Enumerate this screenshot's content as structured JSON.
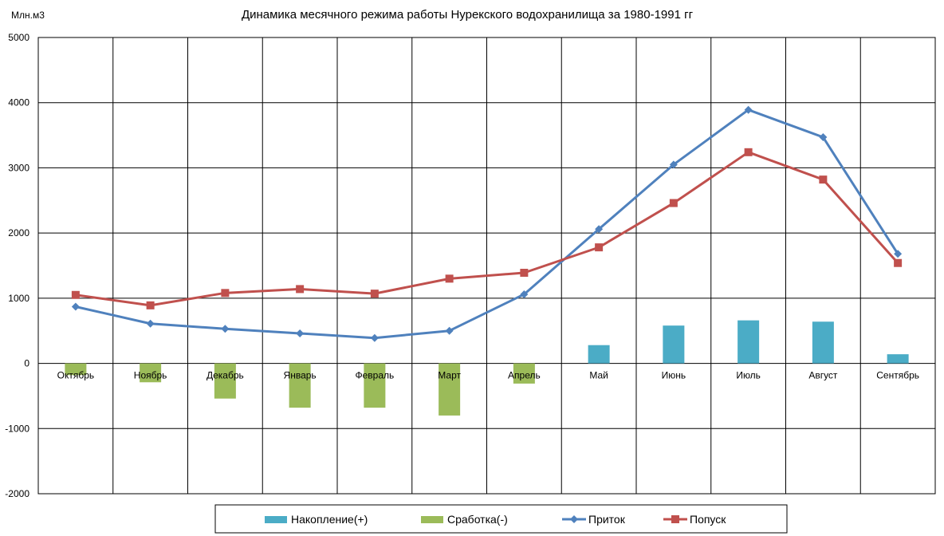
{
  "chart_data": {
    "type": "bar",
    "title": "Динамика  месячного режима работы Нурекского водохранилища  за 1980-1991 гг",
    "ylabel": "Млн.м3",
    "ylim": [
      -2000,
      5000
    ],
    "yticks": [
      -2000,
      -1000,
      0,
      1000,
      2000,
      3000,
      4000,
      5000
    ],
    "grid": true,
    "legend_position": "bottom",
    "categories": [
      "Октябрь",
      "Ноябрь",
      "Декабрь",
      "Январь",
      "Февраль",
      "Март",
      "Апрель",
      "Май",
      "Июнь",
      "Июль",
      "Август",
      "Сентябрь"
    ],
    "series": [
      {
        "name": "Накопление(+)",
        "type": "bar",
        "color": "#4bacc6",
        "values": [
          0,
          0,
          0,
          0,
          0,
          0,
          0,
          280,
          580,
          660,
          640,
          140
        ]
      },
      {
        "name": "Сработка(-)",
        "type": "bar",
        "color": "#9bbb59",
        "values": [
          -180,
          -290,
          -540,
          -680,
          -680,
          -800,
          -310,
          0,
          0,
          0,
          0,
          0
        ]
      },
      {
        "name": "Приток",
        "type": "line",
        "marker": "diamond",
        "color": "#4f81bd",
        "values": [
          870,
          610,
          530,
          460,
          390,
          500,
          1060,
          2060,
          3050,
          3890,
          3470,
          1680
        ]
      },
      {
        "name": "Попуск",
        "type": "line",
        "marker": "square",
        "color": "#c0504d",
        "values": [
          1050,
          890,
          1080,
          1140,
          1070,
          1300,
          1390,
          1780,
          2460,
          3240,
          2820,
          1540
        ]
      }
    ]
  }
}
